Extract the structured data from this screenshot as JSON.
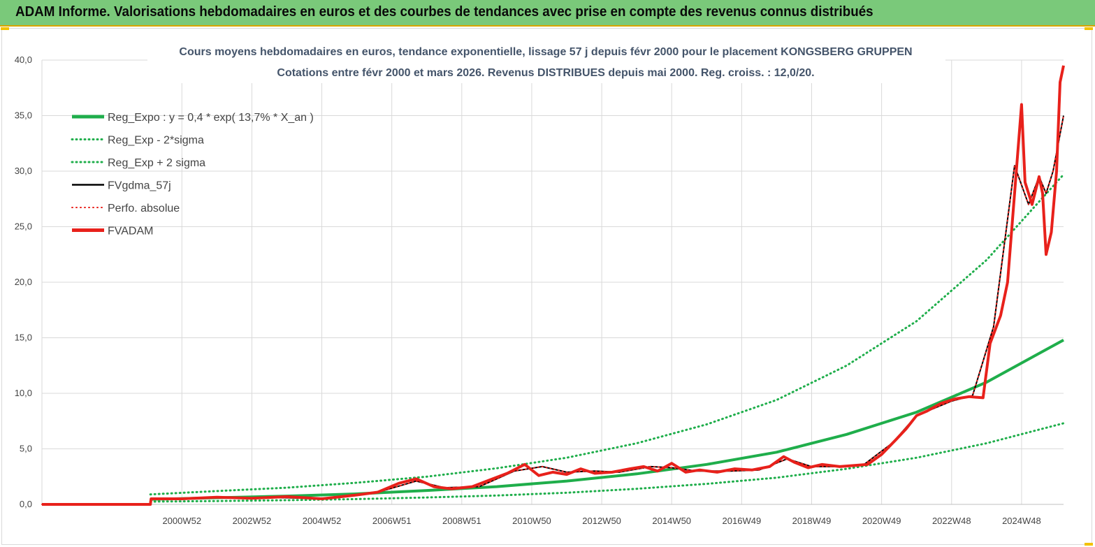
{
  "banner": {
    "title": "ADAM Informe. Valorisations hebdomadaires en euros et des courbes de tendances avec prise en compte des revenus connus distribués"
  },
  "chart_data": {
    "type": "line",
    "title_line1": "Cours moyens hebdomadaires en euros, tendance exponentielle, lissage 57 j depuis févr 2000 pour le placement KONGSBERG GRUPPEN",
    "title_line2": "Cotations entre févr 2000 et mars 2026. Revenus DISTRIBUES depuis mai 2000. Reg. croiss. : 12,0/20.",
    "xlabel": "",
    "ylabel": "",
    "ylim": [
      0,
      40
    ],
    "xlim": [
      1997.0,
      2026.2
    ],
    "y_ticks": [
      "0,0",
      "5,0",
      "10,0",
      "15,0",
      "20,0",
      "25,0",
      "30,0",
      "35,0",
      "40,0"
    ],
    "y_tick_values": [
      0,
      5,
      10,
      15,
      20,
      25,
      30,
      35,
      40
    ],
    "x_tick_labels": [
      "2000W52",
      "2002W52",
      "2004W52",
      "2006W51",
      "2008W51",
      "2010W50",
      "2012W50",
      "2014W50",
      "2016W49",
      "2018W49",
      "2020W49",
      "2022W48",
      "2024W48"
    ],
    "x_tick_positions": [
      2001.0,
      2003.0,
      2005.0,
      2007.0,
      2009.0,
      2011.0,
      2013.0,
      2015.0,
      2017.0,
      2019.0,
      2021.0,
      2023.0,
      2025.0
    ],
    "grid": true,
    "legend_position": "top-left",
    "series": [
      {
        "name": "Reg_Expo : y = 0,4 * exp( 13,7% *  X_an )",
        "color": "#1fae4b",
        "style": "solid-thick",
        "x": [
          2000.1,
          2002,
          2004,
          2006,
          2008,
          2010,
          2012,
          2014,
          2016,
          2018,
          2020,
          2022,
          2024,
          2026.2
        ],
        "values": [
          0.45,
          0.6,
          0.75,
          0.95,
          1.25,
          1.6,
          2.1,
          2.75,
          3.6,
          4.7,
          6.3,
          8.3,
          11.0,
          14.8
        ]
      },
      {
        "name": "Reg_Exp - 2*sigma",
        "color": "#1fae4b",
        "style": "dotted",
        "x": [
          2000.1,
          2002,
          2004,
          2006,
          2008,
          2010,
          2012,
          2014,
          2016,
          2018,
          2020,
          2022,
          2024,
          2026.2
        ],
        "values": [
          0.25,
          0.3,
          0.38,
          0.48,
          0.62,
          0.8,
          1.05,
          1.4,
          1.85,
          2.4,
          3.2,
          4.2,
          5.5,
          7.3
        ]
      },
      {
        "name": "Reg_Exp + 2 sigma",
        "color": "#1fae4b",
        "style": "dotted",
        "x": [
          2000.1,
          2002,
          2004,
          2006,
          2008,
          2010,
          2012,
          2014,
          2016,
          2018,
          2020,
          2022,
          2024,
          2026.2
        ],
        "values": [
          0.9,
          1.2,
          1.5,
          1.95,
          2.5,
          3.25,
          4.2,
          5.5,
          7.2,
          9.4,
          12.5,
          16.5,
          22.0,
          29.7
        ]
      },
      {
        "name": "FVgdma_57j",
        "color": "#000000",
        "style": "solid",
        "x": [
          2000.1,
          2002,
          2004,
          2005,
          2006.5,
          2007.7,
          2008.5,
          2009.5,
          2010.5,
          2011.3,
          2012,
          2012.8,
          2013.5,
          2014.4,
          2015,
          2015.7,
          2016.7,
          2017.5,
          2018.3,
          2019,
          2019.7,
          2020.5,
          2021.3,
          2022,
          2023,
          2023.6,
          2024.2,
          2024.8,
          2025.2,
          2025.5,
          2025.7,
          2025.9,
          2026.2
        ],
        "values": [
          0.5,
          0.6,
          0.6,
          0.5,
          1.0,
          2.1,
          1.5,
          1.6,
          3.0,
          3.4,
          2.9,
          3.0,
          2.9,
          3.4,
          3.3,
          3.0,
          3.0,
          3.1,
          4.1,
          3.4,
          3.4,
          3.6,
          5.5,
          8.0,
          9.3,
          9.8,
          16.0,
          30.5,
          27.0,
          29.5,
          28.0,
          30.0,
          35.0
        ]
      },
      {
        "name": "Perfo. absolue",
        "color": "#e8211b",
        "style": "dotted",
        "x": [
          1997.0,
          2000.1,
          2000.12,
          2002,
          2004,
          2005,
          2006.5,
          2007.7,
          2008.5,
          2009.5,
          2010.5,
          2011.3,
          2012,
          2012.8,
          2013.5,
          2014.4,
          2015,
          2015.7,
          2016.7,
          2017.5,
          2018.3,
          2019,
          2019.7,
          2020.5,
          2021.3,
          2022,
          2023,
          2023.6,
          2024.2,
          2024.8,
          2025.2,
          2025.5,
          2025.7,
          2025.9,
          2026.2
        ],
        "values": [
          0.0,
          0.0,
          0.5,
          0.6,
          0.6,
          0.5,
          1.0,
          2.1,
          1.5,
          1.6,
          3.0,
          3.4,
          2.9,
          3.0,
          2.9,
          3.4,
          3.3,
          3.0,
          3.0,
          3.1,
          4.1,
          3.4,
          3.4,
          3.6,
          5.5,
          8.0,
          9.3,
          9.8,
          16.0,
          30.5,
          27.0,
          29.5,
          28.0,
          30.0,
          35.0
        ]
      },
      {
        "name": "FVADAM",
        "color": "#e8211b",
        "style": "solid-thick",
        "x": [
          1997.0,
          2000.1,
          2000.12,
          2001,
          2002,
          2003,
          2004,
          2005,
          2006,
          2006.6,
          2007.2,
          2007.7,
          2008.2,
          2008.7,
          2009.3,
          2009.8,
          2010.3,
          2010.8,
          2011.2,
          2011.6,
          2012,
          2012.4,
          2012.8,
          2013.3,
          2013.8,
          2014.2,
          2014.6,
          2015.0,
          2015.4,
          2015.8,
          2016.3,
          2016.8,
          2017.3,
          2017.8,
          2018.2,
          2018.5,
          2018.9,
          2019.3,
          2019.8,
          2020.2,
          2020.6,
          2021.0,
          2021.4,
          2021.7,
          2022.0,
          2022.3,
          2022.7,
          2023.1,
          2023.5,
          2023.9,
          2024.1,
          2024.4,
          2024.6,
          2024.8,
          2025.0,
          2025.1,
          2025.3,
          2025.5,
          2025.6,
          2025.7,
          2025.85,
          2026.0,
          2026.1,
          2026.2
        ],
        "values": [
          0.0,
          0.0,
          0.5,
          0.5,
          0.65,
          0.55,
          0.7,
          0.5,
          0.85,
          1.1,
          1.9,
          2.3,
          1.6,
          1.4,
          1.6,
          2.2,
          2.8,
          3.6,
          2.6,
          2.9,
          2.7,
          3.2,
          2.8,
          2.9,
          3.2,
          3.4,
          3.0,
          3.7,
          2.9,
          3.1,
          2.9,
          3.2,
          3.1,
          3.4,
          4.3,
          3.8,
          3.3,
          3.6,
          3.4,
          3.5,
          3.6,
          4.5,
          5.8,
          6.8,
          8.0,
          8.4,
          9.1,
          9.5,
          9.7,
          9.6,
          14.5,
          17.0,
          20.0,
          28.0,
          36.0,
          29.0,
          27.0,
          29.5,
          28.0,
          22.5,
          24.5,
          30.0,
          38.0,
          39.5
        ]
      }
    ]
  }
}
